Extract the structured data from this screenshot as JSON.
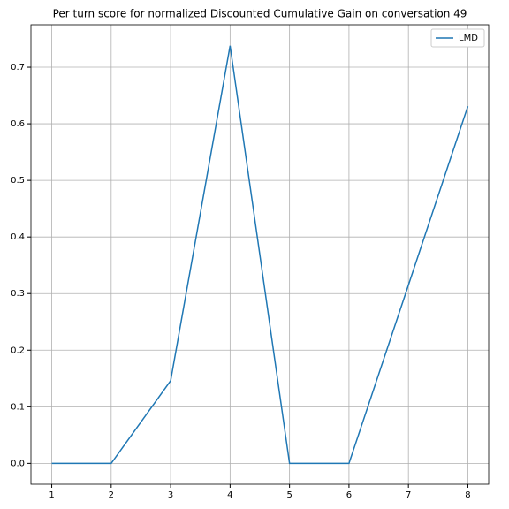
{
  "chart_data": {
    "type": "line",
    "title": "Per turn score for normalized Discounted Cumulative Gain on conversation 49",
    "x": [
      1,
      2,
      3,
      4,
      5,
      6,
      7,
      8
    ],
    "series": [
      {
        "name": "LMD",
        "color": "#1f77b4",
        "values": [
          0,
          0,
          0.146,
          0.738,
          0,
          0,
          0.315,
          0.631
        ]
      }
    ],
    "xlim": [
      0.65,
      8.35
    ],
    "ylim": [
      -0.0369,
      0.775
    ],
    "xticks": [
      1,
      2,
      3,
      4,
      5,
      6,
      7,
      8
    ],
    "yticks": [
      {
        "value": 0,
        "label": "0.0"
      },
      {
        "value": 0.1,
        "label": "0.1"
      },
      {
        "value": 0.2,
        "label": "0.2"
      },
      {
        "value": 0.3,
        "label": "0.3"
      },
      {
        "value": 0.4,
        "label": "0.4"
      },
      {
        "value": 0.5,
        "label": "0.5"
      },
      {
        "value": 0.6,
        "label": "0.6"
      },
      {
        "value": 0.7,
        "label": "0.7"
      }
    ],
    "grid": true,
    "legend": "upper right"
  }
}
